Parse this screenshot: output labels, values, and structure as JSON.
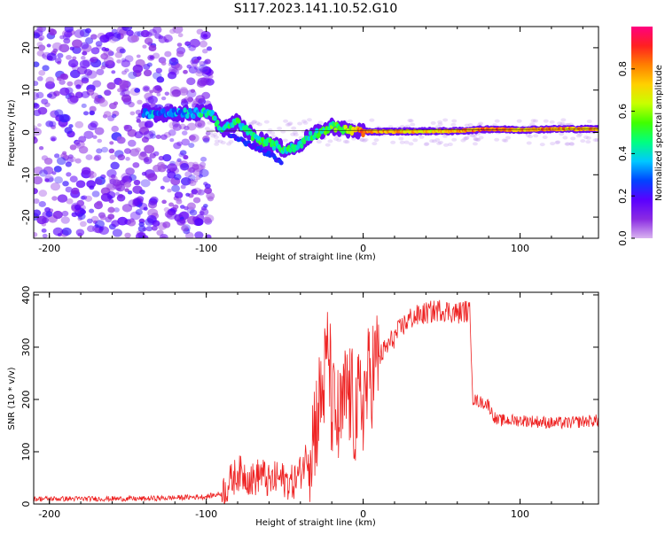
{
  "title": "S117.2023.141.10.52.G10",
  "chart_data": [
    {
      "type": "heatmap",
      "xlabel": "Height of straight line (km)",
      "ylabel": "Frequency (Hz)",
      "xlim": [
        -210,
        150
      ],
      "ylim": [
        -25,
        25
      ],
      "xticks": [
        -200,
        -100,
        0,
        100
      ],
      "yticks": [
        -20,
        -10,
        0,
        10,
        20
      ],
      "colorbar": {
        "label": "Normalized spectral amplitude",
        "range": [
          0,
          1
        ],
        "ticks": [
          0.0,
          0.2,
          0.4,
          0.6,
          0.8
        ],
        "tick_labels": [
          "0.0",
          "0.2",
          "0.4",
          "0.6",
          "0.8"
        ],
        "colormap": [
          "#d9b3f0",
          "#8a2be2",
          "#5a00ff",
          "#0044ff",
          "#00c8ff",
          "#00ff80",
          "#40ff00",
          "#c8ff00",
          "#ffd000",
          "#ff8000",
          "#ff2020",
          "#ff0080"
        ]
      },
      "signal_track": [
        {
          "x": -140,
          "freq": 4.5,
          "amp": 0.35
        },
        {
          "x": -125,
          "freq": 4.5,
          "amp": 0.3
        },
        {
          "x": -110,
          "freq": 4.5,
          "amp": 0.35
        },
        {
          "x": -97,
          "freq": 4.8,
          "amp": 0.45
        },
        {
          "x": -90,
          "freq": 0.5,
          "amp": 0.4
        },
        {
          "x": -80,
          "freq": 2.5,
          "amp": 0.45
        },
        {
          "x": -70,
          "freq": -1.0,
          "amp": 0.45
        },
        {
          "x": -60,
          "freq": -2.5,
          "amp": 0.45
        },
        {
          "x": -50,
          "freq": -4.0,
          "amp": 0.45
        },
        {
          "x": -42,
          "freq": -3.5,
          "amp": 0.4
        },
        {
          "x": -35,
          "freq": -1.0,
          "amp": 0.45
        },
        {
          "x": -28,
          "freq": 0.0,
          "amp": 0.45
        },
        {
          "x": -20,
          "freq": 1.5,
          "amp": 0.5
        },
        {
          "x": -10,
          "freq": 0.5,
          "amp": 0.6
        },
        {
          "x": 0,
          "freq": 0.2,
          "amp": 0.85
        },
        {
          "x": 20,
          "freq": 0.2,
          "amp": 0.75
        },
        {
          "x": 40,
          "freq": 0.3,
          "amp": 0.7
        },
        {
          "x": 60,
          "freq": 0.3,
          "amp": 0.75
        },
        {
          "x": 80,
          "freq": 0.8,
          "amp": 0.85
        },
        {
          "x": 100,
          "freq": 0.6,
          "amp": 0.75
        },
        {
          "x": 120,
          "freq": 0.8,
          "amp": 0.8
        },
        {
          "x": 150,
          "freq": 0.8,
          "amp": 0.75
        }
      ],
      "noise_region": {
        "x_range": [
          -210,
          -97
        ],
        "amp_range": [
          0.05,
          0.25
        ]
      }
    },
    {
      "type": "line",
      "xlabel": "Height of straight line (km)",
      "ylabel": "SNR (10 * v/v)",
      "xlim": [
        -210,
        150
      ],
      "ylim": [
        0,
        405
      ],
      "xticks": [
        -200,
        -100,
        0,
        100
      ],
      "yticks": [
        0,
        100,
        200,
        300,
        400
      ],
      "series": [
        {
          "color": "#ee2222",
          "x": [
            -210,
            -200,
            -180,
            -160,
            -140,
            -120,
            -100,
            -90,
            -85,
            -80,
            -75,
            -70,
            -65,
            -60,
            -55,
            -50,
            -45,
            -40,
            -35,
            -30,
            -25,
            -22,
            -20,
            -15,
            -10,
            -5,
            0,
            5,
            10,
            15,
            20,
            25,
            30,
            40,
            50,
            60,
            65,
            68,
            70,
            75,
            80,
            82,
            85,
            90,
            100,
            110,
            120,
            130,
            140,
            150
          ],
          "y": [
            10,
            10,
            10,
            10,
            10,
            12,
            14,
            20,
            40,
            60,
            55,
            45,
            60,
            40,
            50,
            45,
            40,
            60,
            100,
            160,
            230,
            300,
            180,
            150,
            220,
            170,
            200,
            250,
            280,
            300,
            320,
            340,
            355,
            365,
            372,
            365,
            370,
            365,
            200,
            195,
            190,
            175,
            160,
            160,
            160,
            158,
            155,
            155,
            158,
            160
          ]
        }
      ]
    }
  ]
}
